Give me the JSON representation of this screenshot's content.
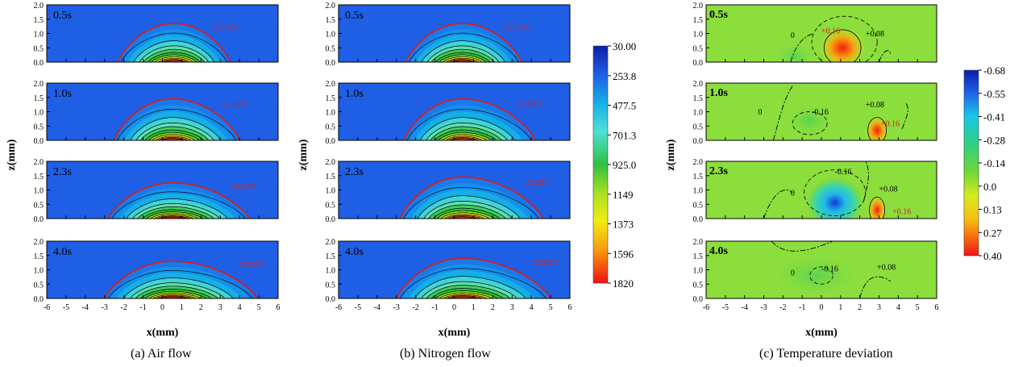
{
  "colors": {
    "blue": "#1f5fe6",
    "contour_red": "#d02020",
    "black": "#000000"
  },
  "chart_data": [
    {
      "type": "heatmap",
      "title": "",
      "caption": "(a) Air flow",
      "xlabel": "x(mm)",
      "ylabel": "z(mm)",
      "xlim": [
        -6,
        6
      ],
      "ylim": [
        0,
        2
      ],
      "x_ticks": [
        "-6",
        "-5",
        "-4",
        "-3",
        "-2",
        "-1",
        "0",
        "1",
        "2",
        "3",
        "4",
        "5",
        "6"
      ],
      "y_ticks": [
        "0.0",
        "0.5",
        "1.0",
        "1.5",
        "2.0"
      ],
      "panels": [
        {
          "time": "0.5s",
          "isotherm_label": "253.8°C",
          "extent": [
            -2.3,
            3.5
          ],
          "peak": 1.35,
          "core_height": 0.55,
          "core_x": 0.6
        },
        {
          "time": "1.0s",
          "isotherm_label": "253.8°C",
          "extent": [
            -2.5,
            4.0
          ],
          "peak": 1.45,
          "core_height": 0.6,
          "core_x": 0.5
        },
        {
          "time": "2.3s",
          "isotherm_label": "253.8°C",
          "extent": [
            -2.8,
            4.5
          ],
          "peak": 1.25,
          "core_height": 0.5,
          "core_x": 0.5
        },
        {
          "time": "4.0s",
          "isotherm_label": "253.8°C",
          "extent": [
            -3.0,
            4.9
          ],
          "peak": 1.3,
          "core_height": 0.5,
          "core_x": 0.5
        }
      ]
    },
    {
      "type": "heatmap",
      "title": "",
      "caption": "(b) Nitrogen flow",
      "xlabel": "x(mm)",
      "ylabel": "z(mm)",
      "xlim": [
        -6,
        6
      ],
      "ylim": [
        0,
        2
      ],
      "x_ticks": [
        "-6",
        "-5",
        "-4",
        "-3",
        "-2",
        "-1",
        "0",
        "1",
        "2",
        "3",
        "4",
        "5",
        "6"
      ],
      "y_ticks": [
        "0.0",
        "0.5",
        "1.0",
        "1.5",
        "2.0"
      ],
      "panels": [
        {
          "time": "0.5s",
          "isotherm_label": "253.8°C",
          "extent": [
            -2.5,
            3.5
          ],
          "peak": 1.35,
          "core_height": 0.55,
          "core_x": 0.4
        },
        {
          "time": "1.0s",
          "isotherm_label": "253.8°C",
          "extent": [
            -2.6,
            4.2
          ],
          "peak": 1.45,
          "core_height": 0.55,
          "core_x": 0.4
        },
        {
          "time": "2.3s",
          "isotherm_label": "253.8°C",
          "extent": [
            -2.8,
            4.6
          ],
          "peak": 1.45,
          "core_height": 0.55,
          "core_x": 0.4
        },
        {
          "time": "4.0s",
          "isotherm_label": "253.8°C",
          "extent": [
            -3.0,
            5.0
          ],
          "peak": 1.4,
          "core_height": 0.5,
          "core_x": 0.4
        }
      ]
    },
    {
      "type": "heatmap",
      "title": "",
      "caption": "(c) Temperature deviation",
      "xlabel": "x(mm)",
      "ylabel": "z(mm)",
      "xlim": [
        -6,
        6
      ],
      "ylim": [
        0,
        2
      ],
      "x_ticks": [
        "-6",
        "-5",
        "-4",
        "-3",
        "-2",
        "-1",
        "0",
        "1",
        "2",
        "3",
        "4",
        "5",
        "6"
      ],
      "y_ticks": [
        "0.0",
        "0.5",
        "1.0",
        "1.5",
        "2.0"
      ],
      "panels": [
        {
          "time": "0.5s",
          "labels": [
            {
              "text": "0",
              "x": -1.6,
              "z": 0.85
            },
            {
              "text": "+0.16",
              "x": 0.0,
              "z": 1.0
            },
            {
              "text": "+0.08",
              "x": 2.3,
              "z": 0.9
            }
          ]
        },
        {
          "time": "1.0s",
          "labels": [
            {
              "text": "0",
              "x": -3.3,
              "z": 0.9
            },
            {
              "text": "-0.16",
              "x": -0.5,
              "z": 0.9
            },
            {
              "text": "+0.08",
              "x": 2.3,
              "z": 1.15
            },
            {
              "text": "+0.16",
              "x": 3.1,
              "z": 0.5
            }
          ]
        },
        {
          "time": "2.3s",
          "labels": [
            {
              "text": "-0.16",
              "x": 0.7,
              "z": 1.55
            },
            {
              "text": "0",
              "x": -1.6,
              "z": 0.8
            },
            {
              "text": "+0.08",
              "x": 3.0,
              "z": 0.95
            },
            {
              "text": "+0.16",
              "x": 3.7,
              "z": 0.15
            }
          ]
        },
        {
          "time": "4.0s",
          "labels": [
            {
              "text": "0",
              "x": -1.6,
              "z": 0.8
            },
            {
              "text": "-0.16",
              "x": 0.0,
              "z": 0.95
            },
            {
              "text": "+0.08",
              "x": 2.9,
              "z": 1.0
            }
          ]
        }
      ]
    }
  ],
  "colorbars": [
    {
      "labels": [
        "30.00",
        "253.8",
        "477.5",
        "701.3",
        "925.0",
        "1149",
        "1373",
        "1596",
        "1820"
      ]
    },
    {
      "labels": [
        "-0.68",
        "-0.55",
        "-0.41",
        "-0.28",
        "-0.14",
        "0.0",
        "0.13",
        "0.27",
        "0.40"
      ]
    }
  ]
}
